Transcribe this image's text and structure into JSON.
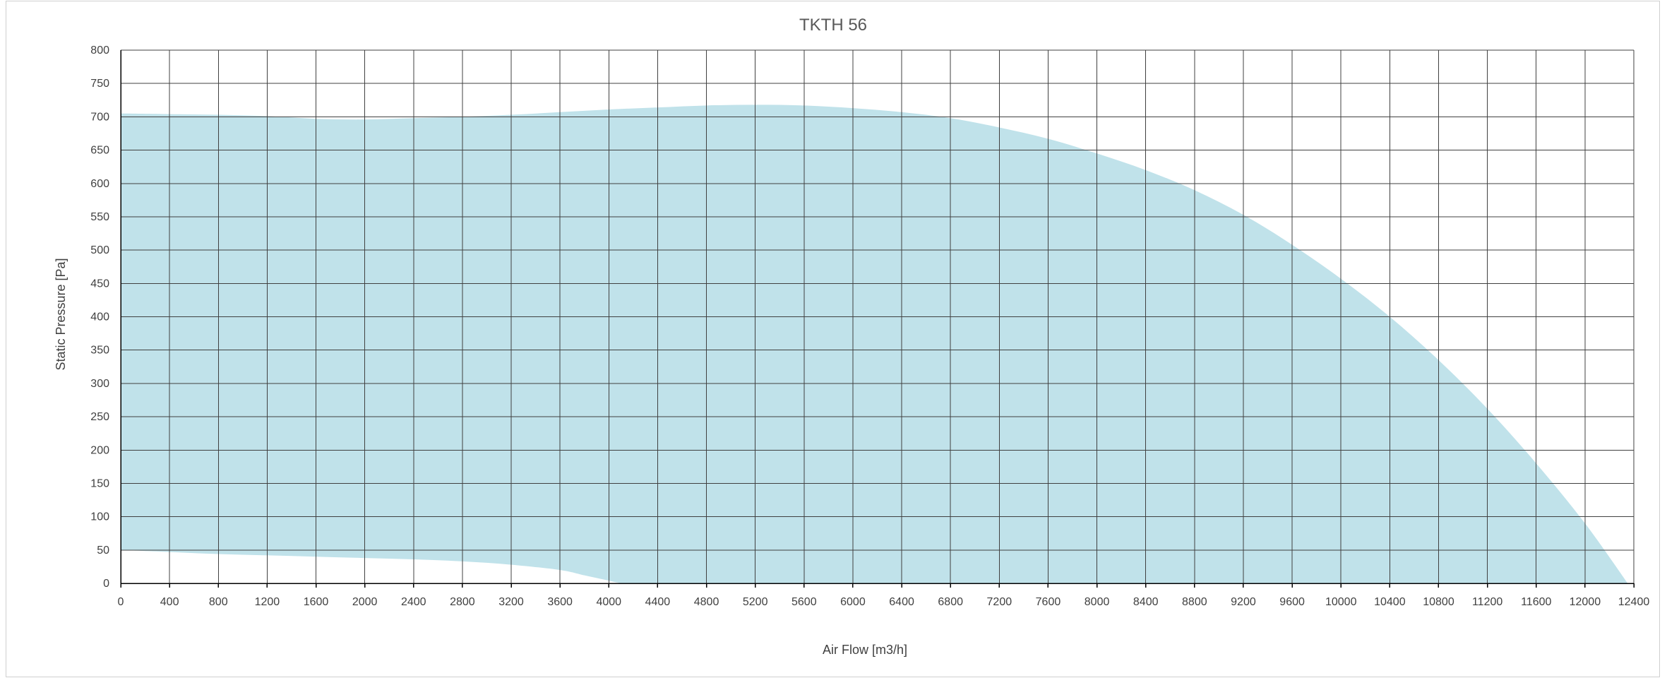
{
  "chart_data": {
    "type": "area",
    "title": "TKTH 56",
    "xlabel": "Air Flow [m3/h]",
    "ylabel": "Static Pressure [Pa]",
    "xlim": [
      0,
      12400
    ],
    "ylim": [
      0,
      800
    ],
    "x_ticks": [
      0,
      400,
      800,
      1200,
      1600,
      2000,
      2400,
      2800,
      3200,
      3600,
      4000,
      4400,
      4800,
      5200,
      5600,
      6000,
      6400,
      6800,
      7200,
      7600,
      8000,
      8400,
      8800,
      9200,
      9600,
      10000,
      10400,
      10800,
      11200,
      11600,
      12000,
      12400
    ],
    "y_ticks": [
      0,
      50,
      100,
      150,
      200,
      250,
      300,
      350,
      400,
      450,
      500,
      550,
      600,
      650,
      700,
      750,
      800
    ],
    "grid": true,
    "legend": "none",
    "fill_color": "#c0e2ea",
    "upper_curve": [
      [
        0,
        705
      ],
      [
        400,
        704
      ],
      [
        800,
        703
      ],
      [
        1200,
        701
      ],
      [
        1600,
        697
      ],
      [
        2000,
        696
      ],
      [
        2400,
        698
      ],
      [
        2800,
        700
      ],
      [
        3200,
        703
      ],
      [
        3600,
        707
      ],
      [
        4000,
        711
      ],
      [
        4400,
        714
      ],
      [
        4800,
        717
      ],
      [
        5200,
        718
      ],
      [
        5600,
        717
      ],
      [
        6000,
        713
      ],
      [
        6400,
        707
      ],
      [
        6800,
        698
      ],
      [
        7200,
        684
      ],
      [
        7600,
        667
      ],
      [
        8000,
        645
      ],
      [
        8400,
        620
      ],
      [
        8800,
        590
      ],
      [
        9200,
        553
      ],
      [
        9600,
        508
      ],
      [
        10000,
        457
      ],
      [
        10400,
        400
      ],
      [
        10800,
        335
      ],
      [
        11200,
        262
      ],
      [
        11600,
        180
      ],
      [
        12000,
        90
      ],
      [
        12350,
        0
      ]
    ],
    "lower_curve": [
      [
        0,
        50
      ],
      [
        400,
        47
      ],
      [
        800,
        44
      ],
      [
        1200,
        42
      ],
      [
        1600,
        40
      ],
      [
        2000,
        38
      ],
      [
        2400,
        36
      ],
      [
        2800,
        33
      ],
      [
        3200,
        28
      ],
      [
        3600,
        20
      ],
      [
        3800,
        12
      ],
      [
        4000,
        4
      ],
      [
        4100,
        0
      ]
    ]
  }
}
